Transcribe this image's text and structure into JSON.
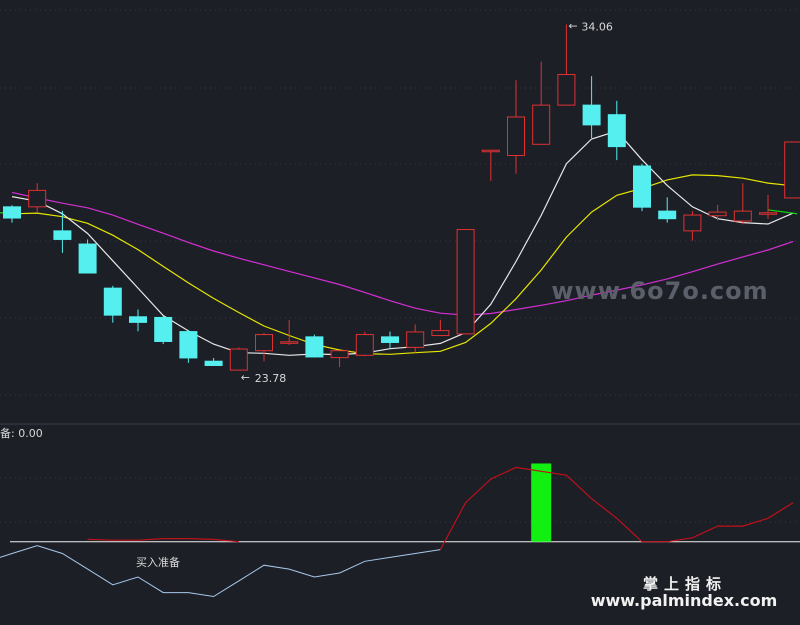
{
  "chart_data": [
    {
      "type": "candlestick",
      "ylim": [
        22.5,
        34.5
      ],
      "grid": true,
      "high_label": "34.06",
      "low_label": "23.78",
      "candles": [
        {
          "o": 28.52,
          "h": 28.57,
          "l": 28.04,
          "c": 28.18
        },
        {
          "o": 28.52,
          "h": 29.24,
          "l": 28.34,
          "c": 29.02
        },
        {
          "o": 27.79,
          "h": 28.4,
          "l": 27.12,
          "c": 27.53
        },
        {
          "o": 27.39,
          "h": 27.53,
          "l": 26.58,
          "c": 26.51
        },
        {
          "o": 26.05,
          "h": 26.12,
          "l": 25.0,
          "c": 25.23
        },
        {
          "o": 25.18,
          "h": 25.4,
          "l": 24.74,
          "c": 25.01
        },
        {
          "o": 25.16,
          "h": 25.21,
          "l": 24.35,
          "c": 24.43
        },
        {
          "o": 24.73,
          "h": 24.78,
          "l": 23.78,
          "c": 23.93
        },
        {
          "o": 23.83,
          "h": 23.93,
          "l": 23.78,
          "c": 23.7
        },
        {
          "o": 23.56,
          "h": 24.25,
          "l": 23.56,
          "c": 24.2
        },
        {
          "o": 24.15,
          "h": 24.69,
          "l": 23.83,
          "c": 24.64
        },
        {
          "o": 24.39,
          "h": 25.08,
          "l": 24.32,
          "c": 24.42
        },
        {
          "o": 24.57,
          "h": 24.64,
          "l": 23.94,
          "c": 23.96
        },
        {
          "o": 23.94,
          "h": 24.15,
          "l": 23.65,
          "c": 24.15
        },
        {
          "o": 24.01,
          "h": 24.72,
          "l": 23.98,
          "c": 24.64
        },
        {
          "o": 24.57,
          "h": 24.73,
          "l": 24.23,
          "c": 24.4
        },
        {
          "o": 24.25,
          "h": 24.95,
          "l": 24.09,
          "c": 24.72
        },
        {
          "o": 24.61,
          "h": 25.09,
          "l": 24.61,
          "c": 24.76
        },
        {
          "o": 24.66,
          "h": 27.83,
          "l": 24.66,
          "c": 27.83
        },
        {
          "o": 30.24,
          "h": 30.24,
          "l": 29.31,
          "c": 30.24
        },
        {
          "o": 30.08,
          "h": 32.37,
          "l": 29.53,
          "c": 31.25
        },
        {
          "o": 30.42,
          "h": 32.93,
          "l": 30.42,
          "c": 31.61
        },
        {
          "o": 31.61,
          "h": 34.06,
          "l": 31.61,
          "c": 32.54
        },
        {
          "o": 31.61,
          "h": 32.49,
          "l": 30.61,
          "c": 31.01
        },
        {
          "o": 31.32,
          "h": 31.74,
          "l": 29.94,
          "c": 30.35
        },
        {
          "o": 29.76,
          "h": 29.83,
          "l": 28.39,
          "c": 28.51
        },
        {
          "o": 28.39,
          "h": 28.81,
          "l": 28.04,
          "c": 28.16
        },
        {
          "o": 27.79,
          "h": 28.39,
          "l": 27.49,
          "c": 28.27
        },
        {
          "o": 28.25,
          "h": 28.58,
          "l": 28.11,
          "c": 28.36
        },
        {
          "o": 28.09,
          "h": 29.24,
          "l": 27.99,
          "c": 28.39
        },
        {
          "o": 28.33,
          "h": 28.88,
          "l": 28.16,
          "c": 28.34
        },
        {
          "o": 28.79,
          "h": 30.49,
          "l": 28.79,
          "c": 30.49
        }
      ],
      "ma_white": [
        28.83,
        28.69,
        28.31,
        27.71,
        26.88,
        26.05,
        25.22,
        24.75,
        24.35,
        24.09,
        24.07,
        24.01,
        24.05,
        24.03,
        24.08,
        24.21,
        24.27,
        24.37,
        24.7,
        25.56,
        26.86,
        28.26,
        29.83,
        30.58,
        30.82,
        29.95,
        29.17,
        28.52,
        28.16,
        28.04,
        28.0,
        28.33
      ],
      "ma_yellow": [
        28.31,
        28.33,
        28.22,
        28.02,
        27.66,
        27.22,
        26.71,
        26.21,
        25.74,
        25.31,
        24.9,
        24.61,
        24.34,
        24.17,
        24.06,
        24.04,
        24.09,
        24.13,
        24.4,
        24.98,
        25.73,
        26.6,
        27.6,
        28.36,
        28.87,
        29.08,
        29.34,
        29.49,
        29.47,
        29.39,
        29.24,
        29.16
      ],
      "ma_magenta": [
        28.96,
        28.79,
        28.63,
        28.49,
        28.27,
        27.99,
        27.72,
        27.44,
        27.18,
        26.96,
        26.76,
        26.56,
        26.36,
        26.16,
        25.92,
        25.67,
        25.44,
        25.29,
        25.23,
        25.28,
        25.4,
        25.53,
        25.67,
        25.84,
        25.99,
        26.15,
        26.33,
        26.55,
        26.78,
        27.0,
        27.21,
        27.47
      ],
      "ma_green_end": [
        28.43,
        28.31
      ]
    },
    {
      "type": "line",
      "title": "备: 0.00",
      "ylim": [
        -100,
        130
      ],
      "annotation": "买入准备",
      "signal_bar_index": 21,
      "signal_bar_value": 100,
      "line_values": [
        -15,
        -5,
        -15,
        -35,
        -55,
        -45,
        -65,
        -65,
        -70,
        -50,
        -30,
        -35,
        -45,
        -40,
        -25,
        -20,
        -15,
        -10,
        50,
        80,
        95,
        90,
        85,
        55,
        30,
        0,
        0,
        5,
        20,
        20,
        30,
        50
      ],
      "red_part_start": 18,
      "mini_red": [
        [
          3,
          3
        ],
        [
          4,
          2
        ],
        [
          5,
          2
        ],
        [
          6,
          4
        ],
        [
          7,
          4
        ],
        [
          8,
          3
        ],
        [
          9,
          0
        ]
      ]
    }
  ],
  "watermark": {
    "center": "www.6o7o.com",
    "brand": "掌上指标",
    "url": "www.palmindex.com"
  },
  "colors": {
    "bg": "#1c1f26",
    "up": "#e03131",
    "down": "#55efef",
    "ma_white": "#e8e8e8",
    "ma_yellow": "#e6e600",
    "ma_magenta": "#d42fd4",
    "green": "#11d411",
    "signal": "#11f011"
  }
}
